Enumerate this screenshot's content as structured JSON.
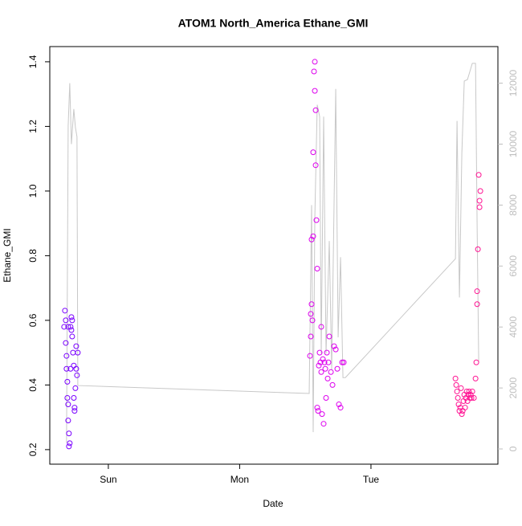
{
  "chart_data": {
    "type": "scatter",
    "title": "ATOM1 North_America Ethane_GMI",
    "x_label": "Date",
    "y_label": "Ethane_GMI",
    "xlim": [
      -10.7,
      71.2
    ],
    "xticks": [
      {
        "value": 0,
        "label": "Sun"
      },
      {
        "value": 24,
        "label": "Mon"
      },
      {
        "value": 48,
        "label": "Tue"
      }
    ],
    "ylim": [
      0.155,
      1.447
    ],
    "yticks": [
      {
        "value": 0.2,
        "label": "0.2"
      },
      {
        "value": 0.4,
        "label": "0.4"
      },
      {
        "value": 0.6,
        "label": "0.6"
      },
      {
        "value": 0.8,
        "label": "0.8"
      },
      {
        "value": 1,
        "label": "1.0"
      },
      {
        "value": 1.2,
        "label": "1.2"
      },
      {
        "value": 1.4,
        "label": "1.4"
      }
    ],
    "y2lim": [
      -500,
      13200
    ],
    "y2ticks": [
      0,
      2000,
      4000,
      6000,
      8000,
      10000,
      12000
    ],
    "y2_color": "#bebebe",
    "series": [
      {
        "mode": "line",
        "axis": "y2",
        "color": "#c8c8c8",
        "x": [
          -7.64,
          -7.34,
          -7.05,
          -6.75,
          -6.31,
          -6.02,
          -5.73,
          -5.58,
          36.71,
          37.15,
          37.44,
          37.74,
          38.18,
          38.62,
          38.91,
          39.35,
          39.79,
          40.38,
          40.82,
          41.56,
          42.0,
          42.44,
          42.88,
          43.32,
          63.44,
          63.73,
          64.17,
          64.61,
          65.05,
          65.64,
          66.52,
          67.11,
          67.4,
          67.69
        ],
        "values": [
          200,
          10600,
          12000,
          10000,
          11150,
          10550,
          10240,
          2080,
          1820,
          8000,
          550,
          7600,
          11290,
          10900,
          3130,
          10900,
          3130,
          6820,
          2600,
          11810,
          3660,
          6290,
          2340,
          2340,
          6240,
          10760,
          4970,
          9710,
          12070,
          12120,
          12650,
          12650,
          7340,
          2870
        ]
      },
      {
        "mode": "points",
        "color": "#7a00ff",
        "x": [
          -8.08,
          -7.93,
          -7.78,
          -7.78,
          -7.64,
          -7.64,
          -7.49,
          -7.49,
          -7.34,
          -7.34,
          -7.2,
          -7.2,
          -7.05,
          -6.9,
          -6.75,
          -6.75,
          -6.61,
          -6.46,
          -6.31,
          -6.31,
          -6.17,
          -6.17,
          -6.02,
          -5.87,
          -5.87,
          -5.73,
          -5.58,
          -6.9,
          -6.61,
          -7.34
        ],
        "values": [
          0.58,
          0.63,
          0.6,
          0.53,
          0.49,
          0.45,
          0.41,
          0.36,
          0.34,
          0.29,
          0.25,
          0.21,
          0.22,
          0.58,
          0.61,
          0.57,
          0.55,
          0.5,
          0.46,
          0.36,
          0.33,
          0.32,
          0.39,
          0.45,
          0.52,
          0.43,
          0.5,
          0.45,
          0.6,
          0.58
        ]
      },
      {
        "mode": "points",
        "color": "#dd00ee",
        "x": [
          36.86,
          37.0,
          37.0,
          37.15,
          37.15,
          37.3,
          37.44,
          37.59,
          37.74,
          37.74,
          37.89,
          37.89,
          38.03,
          38.18,
          38.18,
          38.33,
          38.47,
          38.62,
          38.77,
          38.91,
          39.06,
          39.21,
          39.35,
          39.5,
          39.65,
          39.79,
          39.94,
          40.09,
          40.23,
          40.38,
          40.68,
          40.97,
          41.26,
          41.56,
          41.85,
          42.14,
          42.44,
          42.73,
          43.02,
          37.44,
          38.91
        ],
        "values": [
          0.49,
          0.55,
          0.62,
          0.65,
          0.85,
          0.6,
          1.12,
          1.37,
          1.4,
          1.31,
          1.25,
          1.08,
          0.91,
          0.76,
          0.33,
          0.32,
          0.46,
          0.5,
          0.47,
          0.44,
          0.31,
          0.48,
          0.28,
          0.47,
          0.45,
          0.36,
          0.5,
          0.42,
          0.47,
          0.55,
          0.44,
          0.4,
          0.52,
          0.51,
          0.45,
          0.34,
          0.33,
          0.47,
          0.47,
          0.86,
          0.58
        ]
      },
      {
        "mode": "points",
        "color": "#ff1493",
        "x": [
          63.44,
          63.58,
          63.73,
          63.88,
          64.02,
          64.17,
          64.32,
          64.46,
          64.61,
          64.76,
          64.9,
          65.05,
          65.2,
          65.35,
          65.49,
          65.64,
          65.79,
          65.93,
          66.08,
          66.23,
          66.37,
          66.52,
          66.81,
          67.11,
          67.25,
          67.4,
          67.4,
          67.55,
          67.69,
          67.84,
          67.99,
          67.84
        ],
        "values": [
          0.42,
          0.4,
          0.38,
          0.36,
          0.34,
          0.32,
          0.33,
          0.39,
          0.31,
          0.32,
          0.35,
          0.37,
          0.33,
          0.36,
          0.38,
          0.35,
          0.37,
          0.38,
          0.36,
          0.37,
          0.36,
          0.38,
          0.36,
          0.42,
          0.47,
          0.65,
          0.69,
          0.82,
          1.05,
          0.97,
          1.0,
          0.95
        ]
      }
    ]
  }
}
